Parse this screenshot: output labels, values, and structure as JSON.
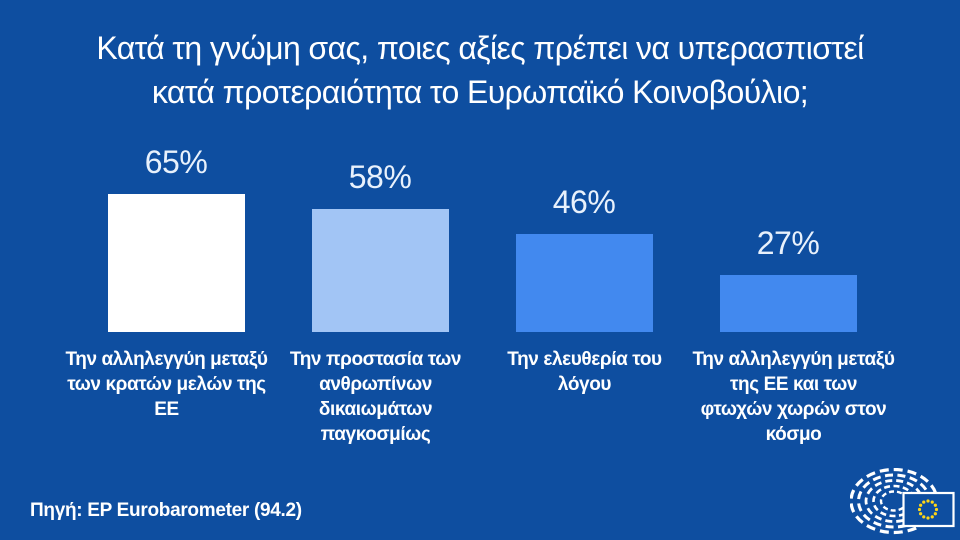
{
  "title": {
    "line1": "Κατά τη γνώμη σας, ποιες αξίες πρέπει να υπερασπιστεί",
    "line2": "κατά προτεραιότητα το Ευρωπαϊκό Κοινοβούλιο;"
  },
  "chart_data": {
    "type": "bar",
    "title": "Κατά τη γνώμη σας, ποιες αξίες πρέπει να υπερασπιστεί κατά προτεραιότητα το Ευρωπαϊκό Κοινοβούλιο;",
    "categories": [
      "Την αλληλεγγύη μεταξύ των κρατών μελών της ΕΕ",
      "Την προστασία των ανθρωπίνων δικαιωμάτων παγκοσμίως",
      "Την ελευθερία του λόγου",
      "Την αλληλεγγύη μεταξύ της ΕΕ και των φτωχών χωρών στον κόσμο"
    ],
    "values": [
      65,
      58,
      46,
      27
    ],
    "value_labels": [
      "65%",
      "58%",
      "46%",
      "27%"
    ],
    "bar_colors": [
      "#ffffff",
      "#a2c5f5",
      "#4289ef",
      "#4289ef"
    ],
    "unit": "%",
    "xlabel": "",
    "ylabel": "",
    "ylim": [
      0,
      70
    ],
    "grid": false,
    "legend": false,
    "value_labels_position": "above-bars"
  },
  "source": "Πηγή: EP Eurobarometer (94.2)",
  "logo": {
    "name": "european-parliament-logo"
  },
  "colors": {
    "background": "#0e4ea0",
    "title_text": "#ffffff",
    "value_text": "#e8f1fc",
    "category_text": "#ffffff",
    "flag_star": "#ffd617",
    "logo_stroke": "#ffffff"
  }
}
